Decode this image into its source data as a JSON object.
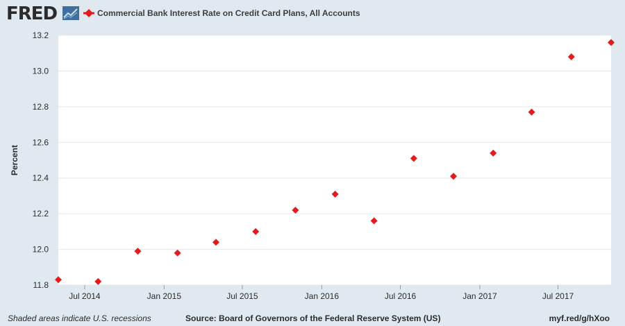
{
  "header": {
    "logo_text": "FRED",
    "logo_icon": "fred-chart-icon",
    "legend_icon": "red-diamond-line-icon"
  },
  "footer": {
    "recession_note": "Shaded areas indicate U.S. recessions",
    "source": "Source: Board of Governors of the Federal Reserve System (US)",
    "link": "myf.red/g/hXoo"
  },
  "chart_data": {
    "type": "scatter",
    "title": "",
    "xlabel": "",
    "ylabel": "Percent",
    "xlim": [
      "2014-05-01",
      "2017-11-01"
    ],
    "ylim": [
      11.8,
      13.2
    ],
    "yticks": [
      "11.8",
      "12.0",
      "12.2",
      "12.4",
      "12.6",
      "12.8",
      "13.0",
      "13.2"
    ],
    "xticks": [
      {
        "date": "2014-07-01",
        "label": "Jul 2014"
      },
      {
        "date": "2015-01-01",
        "label": "Jan 2015"
      },
      {
        "date": "2015-07-01",
        "label": "Jul 2015"
      },
      {
        "date": "2016-01-01",
        "label": "Jan 2016"
      },
      {
        "date": "2016-07-01",
        "label": "Jul 2016"
      },
      {
        "date": "2017-01-01",
        "label": "Jan 2017"
      },
      {
        "date": "2017-07-01",
        "label": "Jul 2017"
      }
    ],
    "grid": "horizontal",
    "legend_position": "top",
    "series": [
      {
        "name": "Commercial Bank Interest Rate on Credit Card Plans, All Accounts",
        "color": "#e41a1c",
        "marker": "diamond",
        "x": [
          "2014-05-01",
          "2014-08-01",
          "2014-11-01",
          "2015-02-01",
          "2015-05-01",
          "2015-08-01",
          "2015-11-01",
          "2016-02-01",
          "2016-05-01",
          "2016-08-01",
          "2016-11-01",
          "2017-02-01",
          "2017-05-01",
          "2017-08-01",
          "2017-11-01"
        ],
        "y": [
          11.83,
          11.82,
          11.99,
          11.98,
          12.04,
          12.1,
          12.22,
          12.31,
          12.16,
          12.51,
          12.41,
          12.54,
          12.77,
          13.08,
          13.16
        ]
      }
    ]
  }
}
